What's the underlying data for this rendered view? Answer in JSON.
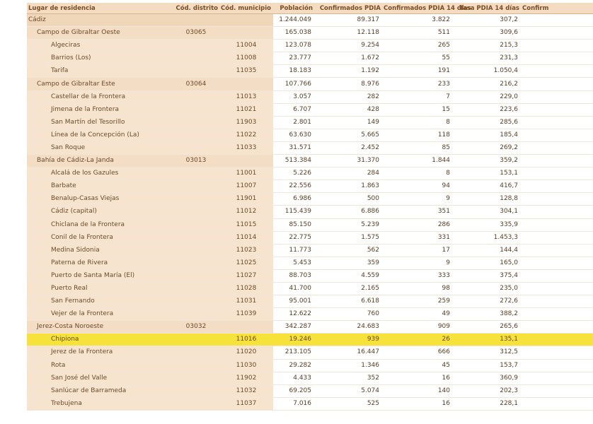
{
  "headers": [
    "Lugar de residencia",
    "Cód. distrito",
    "Cód. municipio",
    "Población",
    "Confirmados PDIA",
    "Confirmados PDIA 14 días",
    "Tasa PDIA 14 días",
    "Confirm"
  ],
  "rows": [
    {
      "level": 0,
      "name": "Cádiz",
      "distrito": "",
      "municipio": "",
      "poblacion": "1.244.049",
      "confirmados": "89.317",
      "conf14": "3.822",
      "tasa14": "307,2"
    },
    {
      "level": 1,
      "name": "Campo de Gibraltar Oeste",
      "distrito": "03065",
      "municipio": "",
      "poblacion": "165.038",
      "confirmados": "12.118",
      "conf14": "511",
      "tasa14": "309,6"
    },
    {
      "level": 2,
      "name": "Algeciras",
      "distrito": "",
      "municipio": "11004",
      "poblacion": "123.078",
      "confirmados": "9.254",
      "conf14": "265",
      "tasa14": "215,3"
    },
    {
      "level": 2,
      "name": "Barrios (Los)",
      "distrito": "",
      "municipio": "11008",
      "poblacion": "23.777",
      "confirmados": "1.672",
      "conf14": "55",
      "tasa14": "231,3"
    },
    {
      "level": 2,
      "name": "Tarifa",
      "distrito": "",
      "municipio": "11035",
      "poblacion": "18.183",
      "confirmados": "1.192",
      "conf14": "191",
      "tasa14": "1.050,4"
    },
    {
      "level": 1,
      "name": "Campo de Gibraltar Este",
      "distrito": "03064",
      "municipio": "",
      "poblacion": "107.766",
      "confirmados": "8.976",
      "conf14": "233",
      "tasa14": "216,2"
    },
    {
      "level": 2,
      "name": "Castellar de la Frontera",
      "distrito": "",
      "municipio": "11013",
      "poblacion": "3.057",
      "confirmados": "282",
      "conf14": "7",
      "tasa14": "229,0"
    },
    {
      "level": 2,
      "name": "Jimena de la Frontera",
      "distrito": "",
      "municipio": "11021",
      "poblacion": "6.707",
      "confirmados": "428",
      "conf14": "15",
      "tasa14": "223,6"
    },
    {
      "level": 2,
      "name": "San Martín del Tesorillo",
      "distrito": "",
      "municipio": "11903",
      "poblacion": "2.801",
      "confirmados": "149",
      "conf14": "8",
      "tasa14": "285,6"
    },
    {
      "level": 2,
      "name": "Línea de la Concepción (La)",
      "distrito": "",
      "municipio": "11022",
      "poblacion": "63.630",
      "confirmados": "5.665",
      "conf14": "118",
      "tasa14": "185,4"
    },
    {
      "level": 2,
      "name": "San Roque",
      "distrito": "",
      "municipio": "11033",
      "poblacion": "31.571",
      "confirmados": "2.452",
      "conf14": "85",
      "tasa14": "269,2"
    },
    {
      "level": 1,
      "name": "Bahía de Cádiz-La Janda",
      "distrito": "03013",
      "municipio": "",
      "poblacion": "513.384",
      "confirmados": "31.370",
      "conf14": "1.844",
      "tasa14": "359,2"
    },
    {
      "level": 2,
      "name": "Alcalá de los Gazules",
      "distrito": "",
      "municipio": "11001",
      "poblacion": "5.226",
      "confirmados": "284",
      "conf14": "8",
      "tasa14": "153,1"
    },
    {
      "level": 2,
      "name": "Barbate",
      "distrito": "",
      "municipio": "11007",
      "poblacion": "22.556",
      "confirmados": "1.863",
      "conf14": "94",
      "tasa14": "416,7"
    },
    {
      "level": 2,
      "name": "Benalup-Casas Viejas",
      "distrito": "",
      "municipio": "11901",
      "poblacion": "6.986",
      "confirmados": "500",
      "conf14": "9",
      "tasa14": "128,8"
    },
    {
      "level": 2,
      "name": "Cádiz (capital)",
      "distrito": "",
      "municipio": "11012",
      "poblacion": "115.439",
      "confirmados": "6.886",
      "conf14": "351",
      "tasa14": "304,1"
    },
    {
      "level": 2,
      "name": "Chiclana de la Frontera",
      "distrito": "",
      "municipio": "11015",
      "poblacion": "85.150",
      "confirmados": "5.239",
      "conf14": "286",
      "tasa14": "335,9"
    },
    {
      "level": 2,
      "name": "Conil de la Frontera",
      "distrito": "",
      "municipio": "11014",
      "poblacion": "22.775",
      "confirmados": "1.575",
      "conf14": "331",
      "tasa14": "1.453,3"
    },
    {
      "level": 2,
      "name": "Medina Sidonia",
      "distrito": "",
      "municipio": "11023",
      "poblacion": "11.773",
      "confirmados": "562",
      "conf14": "17",
      "tasa14": "144,4"
    },
    {
      "level": 2,
      "name": "Paterna de Rivera",
      "distrito": "",
      "municipio": "11025",
      "poblacion": "5.453",
      "confirmados": "359",
      "conf14": "9",
      "tasa14": "165,0"
    },
    {
      "level": 2,
      "name": "Puerto de Santa María (El)",
      "distrito": "",
      "municipio": "11027",
      "poblacion": "88.703",
      "confirmados": "4.559",
      "conf14": "333",
      "tasa14": "375,4"
    },
    {
      "level": 2,
      "name": "Puerto Real",
      "distrito": "",
      "municipio": "11028",
      "poblacion": "41.700",
      "confirmados": "2.165",
      "conf14": "98",
      "tasa14": "235,0"
    },
    {
      "level": 2,
      "name": "San Fernando",
      "distrito": "",
      "municipio": "11031",
      "poblacion": "95.001",
      "confirmados": "6.618",
      "conf14": "259",
      "tasa14": "272,6"
    },
    {
      "level": 2,
      "name": "Vejer de la Frontera",
      "distrito": "",
      "municipio": "11039",
      "poblacion": "12.622",
      "confirmados": "760",
      "conf14": "49",
      "tasa14": "388,2"
    },
    {
      "level": 1,
      "name": "Jerez-Costa Noroeste",
      "distrito": "03032",
      "municipio": "",
      "poblacion": "342.287",
      "confirmados": "24.683",
      "conf14": "909",
      "tasa14": "265,6"
    },
    {
      "level": 2,
      "name": "Chipiona",
      "distrito": "",
      "municipio": "11016",
      "poblacion": "19.246",
      "confirmados": "939",
      "conf14": "26",
      "tasa14": "135,1",
      "highlight": true
    },
    {
      "level": 2,
      "name": "Jerez de la Frontera",
      "distrito": "",
      "municipio": "11020",
      "poblacion": "213.105",
      "confirmados": "16.447",
      "conf14": "666",
      "tasa14": "312,5"
    },
    {
      "level": 2,
      "name": "Rota",
      "distrito": "",
      "municipio": "11030",
      "poblacion": "29.282",
      "confirmados": "1.346",
      "conf14": "45",
      "tasa14": "153,7"
    },
    {
      "level": 2,
      "name": "San José del Valle",
      "distrito": "",
      "municipio": "11902",
      "poblacion": "4.433",
      "confirmados": "352",
      "conf14": "16",
      "tasa14": "360,9"
    },
    {
      "level": 2,
      "name": "Sanlúcar de Barrameda",
      "distrito": "",
      "municipio": "11032",
      "poblacion": "69.205",
      "confirmados": "5.074",
      "conf14": "140",
      "tasa14": "202,3"
    },
    {
      "level": 2,
      "name": "Trebujena",
      "distrito": "",
      "municipio": "11037",
      "poblacion": "7.016",
      "confirmados": "525",
      "conf14": "16",
      "tasa14": "228,1"
    }
  ]
}
